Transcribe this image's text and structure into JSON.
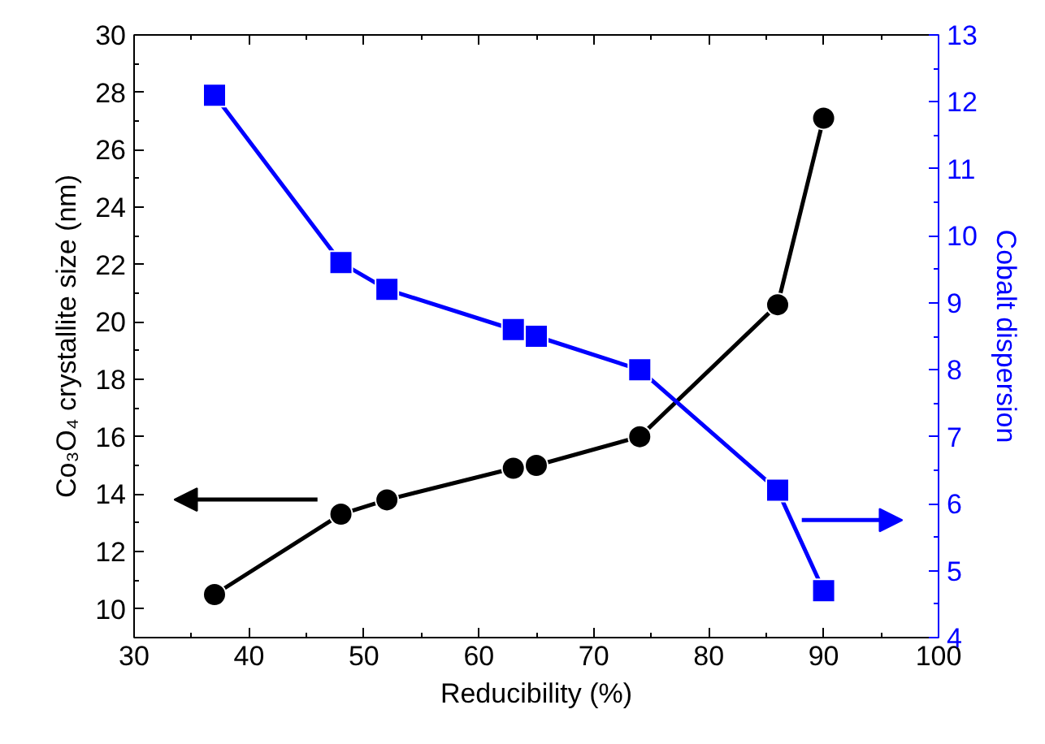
{
  "chart_data": {
    "type": "line",
    "xlabel": "Reducibility (%)",
    "ylabel": "Co₃O₄ crystallite size (nm)",
    "y2label": "Cobalt dispersion",
    "x": [
      37,
      48,
      52,
      63,
      65,
      74,
      86,
      90
    ],
    "series": [
      {
        "color": "#000000",
        "marker": "circle",
        "values": [
          10.5,
          13.3,
          13.8,
          14.9,
          15.0,
          16.0,
          20.6,
          27.1
        ]
      },
      {
        "color": "#0000ff",
        "marker": "square",
        "axis": "y2",
        "values": [
          12.1,
          9.6,
          9.2,
          8.6,
          8.5,
          8.0,
          6.2,
          4.7
        ]
      }
    ],
    "xlim": [
      30,
      100
    ],
    "xticks": [
      30,
      40,
      50,
      60,
      70,
      80,
      90,
      100
    ],
    "ylim": [
      9,
      30
    ],
    "yticks": [
      10,
      12,
      14,
      16,
      18,
      20,
      22,
      24,
      26,
      28,
      30
    ],
    "y2lim": [
      4,
      13
    ],
    "y2ticks": [
      4,
      5,
      6,
      7,
      8,
      9,
      10,
      11,
      12,
      13
    ],
    "grid": false
  }
}
